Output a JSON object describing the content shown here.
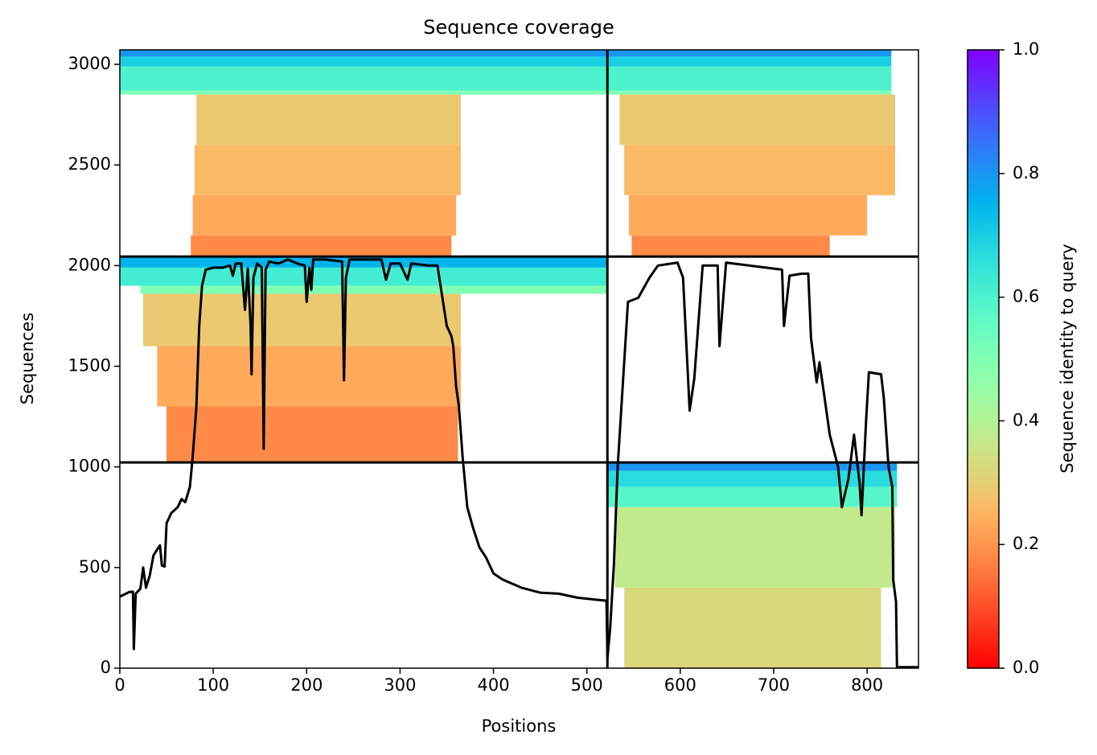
{
  "chart_data": {
    "type": "coverage",
    "title": "Sequence coverage",
    "xlabel": "Positions",
    "ylabel": "Sequences",
    "xlim": [
      0,
      855
    ],
    "ylim": [
      0,
      3072
    ],
    "xticks": [
      0,
      100,
      200,
      300,
      400,
      500,
      600,
      700,
      800
    ],
    "yticks": [
      0,
      500,
      1000,
      1500,
      2000,
      2500,
      3000
    ],
    "colormap": "rainbow_r",
    "colorbar": {
      "label": "Sequence identity to query",
      "clim": [
        0,
        1
      ],
      "ticks": [
        {
          "value": 0,
          "label": "0.0"
        },
        {
          "value": 0.2,
          "label": "0.2"
        },
        {
          "value": 0.4,
          "label": "0.4"
        },
        {
          "value": 0.6,
          "label": "0.6"
        },
        {
          "value": 0.8,
          "label": "0.8"
        },
        {
          "value": 1,
          "label": "1.0"
        }
      ]
    },
    "blocks": [
      {
        "x": [
          0,
          522
        ],
        "y": [
          3040,
          3072
        ],
        "identity": 0.8
      },
      {
        "x": [
          0,
          522
        ],
        "y": [
          2990,
          3040
        ],
        "identity": 0.7
      },
      {
        "x": [
          0,
          522
        ],
        "y": [
          2870,
          2990
        ],
        "identity": 0.6
      },
      {
        "x": [
          0,
          522
        ],
        "y": [
          2850,
          2870
        ],
        "identity": 0.5
      },
      {
        "x": [
          82,
          365
        ],
        "y": [
          2600,
          2850
        ],
        "identity": 0.29
      },
      {
        "x": [
          80,
          365
        ],
        "y": [
          2350,
          2600
        ],
        "identity": 0.26
      },
      {
        "x": [
          78,
          360
        ],
        "y": [
          2150,
          2350
        ],
        "identity": 0.23
      },
      {
        "x": [
          76,
          355
        ],
        "y": [
          2045,
          2150
        ],
        "identity": 0.18
      },
      {
        "x": [
          523,
          826
        ],
        "y": [
          3040,
          3072
        ],
        "identity": 0.8
      },
      {
        "x": [
          523,
          826
        ],
        "y": [
          2990,
          3040
        ],
        "identity": 0.7
      },
      {
        "x": [
          523,
          826
        ],
        "y": [
          2870,
          2990
        ],
        "identity": 0.6
      },
      {
        "x": [
          523,
          826
        ],
        "y": [
          2850,
          2870
        ],
        "identity": 0.5
      },
      {
        "x": [
          535,
          830
        ],
        "y": [
          2600,
          2850
        ],
        "identity": 0.29
      },
      {
        "x": [
          540,
          830
        ],
        "y": [
          2350,
          2600
        ],
        "identity": 0.26
      },
      {
        "x": [
          545,
          800
        ],
        "y": [
          2150,
          2350
        ],
        "identity": 0.23
      },
      {
        "x": [
          548,
          760
        ],
        "y": [
          2045,
          2150
        ],
        "identity": 0.18
      },
      {
        "x": [
          0,
          522
        ],
        "y": [
          1990,
          2045
        ],
        "identity": 0.75
      },
      {
        "x": [
          0,
          522
        ],
        "y": [
          1900,
          1990
        ],
        "identity": 0.62
      },
      {
        "x": [
          22,
          522
        ],
        "y": [
          1860,
          1900
        ],
        "identity": 0.5
      },
      {
        "x": [
          25,
          365
        ],
        "y": [
          1600,
          1860
        ],
        "identity": 0.29
      },
      {
        "x": [
          40,
          365
        ],
        "y": [
          1300,
          1600
        ],
        "identity": 0.23
      },
      {
        "x": [
          50,
          362
        ],
        "y": [
          1025,
          1300
        ],
        "identity": 0.18
      },
      {
        "x": [
          523,
          832
        ],
        "y": [
          980,
          1022
        ],
        "identity": 0.8
      },
      {
        "x": [
          523,
          832
        ],
        "y": [
          900,
          980
        ],
        "identity": 0.67
      },
      {
        "x": [
          523,
          832
        ],
        "y": [
          800,
          900
        ],
        "identity": 0.58
      },
      {
        "x": [
          530,
          830
        ],
        "y": [
          400,
          800
        ],
        "identity": 0.37
      },
      {
        "x": [
          540,
          815
        ],
        "y": [
          0,
          400
        ],
        "identity": 0.32
      }
    ],
    "dividers": {
      "x": [
        522
      ],
      "y": [
        1022,
        2045
      ]
    },
    "series": [
      {
        "name": "coverage",
        "color": "#000000",
        "x": [
          0,
          10,
          14,
          15,
          17,
          22,
          25,
          28,
          32,
          36,
          40,
          43,
          45,
          48,
          50,
          55,
          62,
          66,
          70,
          75,
          78,
          82,
          85,
          88,
          92,
          100,
          110,
          118,
          121,
          124,
          130,
          134,
          137,
          140,
          141,
          143,
          147,
          152,
          154,
          156,
          160,
          170,
          180,
          190,
          198,
          200,
          203,
          205,
          207,
          220,
          238,
          240,
          242,
          246,
          260,
          280,
          285,
          290,
          300,
          308,
          312,
          330,
          340,
          345,
          350,
          355,
          357,
          360,
          363,
          367,
          372,
          378,
          385,
          392,
          400,
          410,
          430,
          450,
          470,
          480,
          490,
          510,
          521,
          522,
          525,
          529,
          533,
          544,
          555,
          567,
          576,
          597,
          603,
          610,
          615,
          624,
          640,
          642,
          649,
          709,
          711,
          717,
          730,
          737,
          740,
          746,
          749,
          754,
          760,
          769,
          773,
          780,
          786,
          792,
          794,
          799,
          802,
          815,
          818,
          823,
          827,
          828,
          831,
          832,
          855
        ],
        "values": [
          355,
          378,
          380,
          95,
          370,
          395,
          500,
          400,
          460,
          560,
          590,
          610,
          510,
          505,
          720,
          770,
          800,
          840,
          825,
          900,
          1050,
          1300,
          1700,
          1900,
          1980,
          1990,
          1990,
          2000,
          1950,
          2010,
          2010,
          1780,
          1985,
          1700,
          1460,
          1940,
          2010,
          1990,
          1090,
          1980,
          2020,
          2010,
          2030,
          2010,
          2000,
          1820,
          1990,
          1880,
          2030,
          2030,
          2020,
          1430,
          1940,
          2030,
          2030,
          2030,
          1930,
          2010,
          2010,
          1930,
          2010,
          2000,
          2000,
          1850,
          1700,
          1650,
          1600,
          1400,
          1300,
          1050,
          800,
          700,
          600,
          550,
          470,
          440,
          400,
          375,
          370,
          360,
          350,
          340,
          335,
          50,
          200,
          523,
          1000,
          1820,
          1840,
          1940,
          2000,
          2015,
          1940,
          1280,
          1440,
          2000,
          2000,
          1600,
          2015,
          1980,
          1700,
          1950,
          1960,
          1960,
          1640,
          1420,
          1520,
          1360,
          1160,
          1000,
          800,
          940,
          1160,
          920,
          760,
          1240,
          1470,
          1460,
          1340,
          1000,
          900,
          440,
          330,
          5,
          5
        ]
      }
    ]
  }
}
